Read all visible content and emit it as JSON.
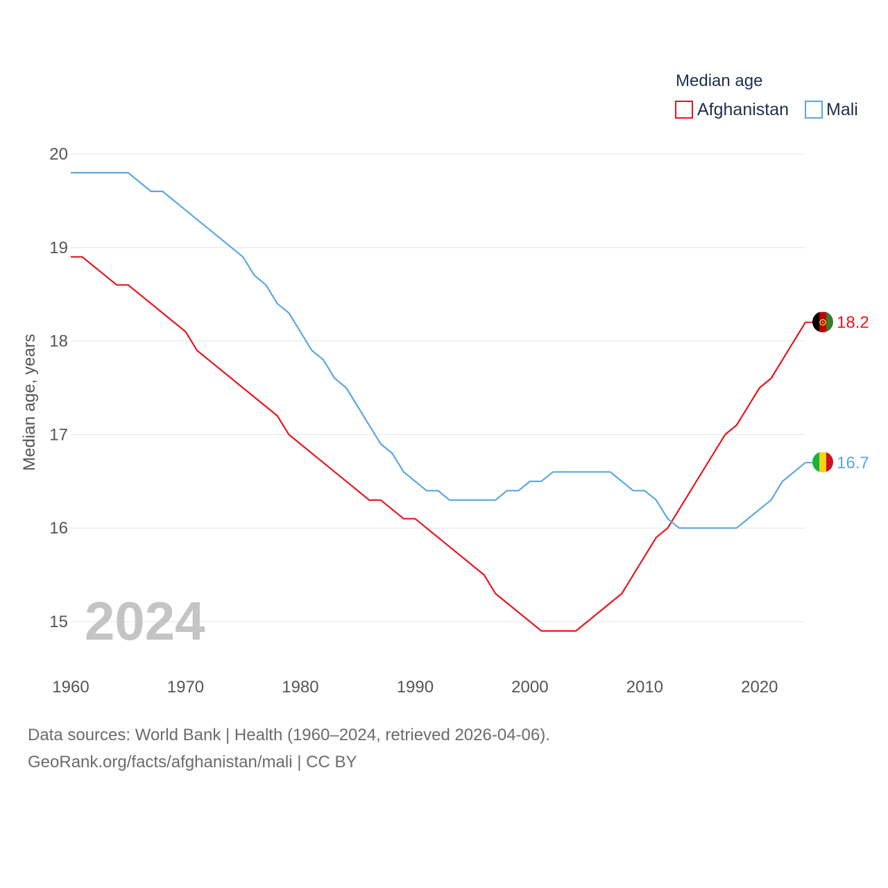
{
  "chart_data": {
    "type": "line",
    "legend_title": "Median age",
    "ylabel": "Median age, years",
    "xlabel": "",
    "xlim": [
      1960,
      2024
    ],
    "ylim": [
      14.5,
      20.2
    ],
    "y_ticks": [
      15,
      16,
      17,
      18,
      19,
      20
    ],
    "x_ticks": [
      1960,
      1970,
      1980,
      1990,
      2000,
      2010,
      2020
    ],
    "year_label": "2024",
    "legend_position": "top-right",
    "grid": true,
    "series": [
      {
        "name": "Afghanistan",
        "color": "#e8141c",
        "flag": "afghanistan-flag",
        "end_label": "18.2",
        "points": [
          [
            1960,
            18.9
          ],
          [
            1961,
            18.9
          ],
          [
            1964,
            18.6
          ],
          [
            1965,
            18.6
          ],
          [
            1970,
            18.1
          ],
          [
            1971,
            17.9
          ],
          [
            1978,
            17.2
          ],
          [
            1979,
            17.0
          ],
          [
            1986,
            16.3
          ],
          [
            1987,
            16.3
          ],
          [
            1989,
            16.1
          ],
          [
            1990,
            16.1
          ],
          [
            1996,
            15.5
          ],
          [
            1997,
            15.3
          ],
          [
            2001,
            14.9
          ],
          [
            2004,
            14.9
          ],
          [
            2008,
            15.3
          ],
          [
            2011,
            15.9
          ],
          [
            2012,
            16.0
          ],
          [
            2017,
            17.0
          ],
          [
            2018,
            17.1
          ],
          [
            2020,
            17.5
          ],
          [
            2021,
            17.6
          ],
          [
            2024,
            18.2
          ]
        ]
      },
      {
        "name": "Mali",
        "color": "#5aa5e6",
        "flag": "mali-flag",
        "end_label": "16.7",
        "points": [
          [
            1960,
            19.8
          ],
          [
            1965,
            19.8
          ],
          [
            1967,
            19.6
          ],
          [
            1968,
            19.6
          ],
          [
            1975,
            18.9
          ],
          [
            1976,
            18.7
          ],
          [
            1977,
            18.6
          ],
          [
            1978,
            18.4
          ],
          [
            1979,
            18.3
          ],
          [
            1981,
            17.9
          ],
          [
            1982,
            17.8
          ],
          [
            1983,
            17.6
          ],
          [
            1984,
            17.5
          ],
          [
            1987,
            16.9
          ],
          [
            1988,
            16.8
          ],
          [
            1989,
            16.6
          ],
          [
            1991,
            16.4
          ],
          [
            1992,
            16.4
          ],
          [
            1993,
            16.3
          ],
          [
            1997,
            16.3
          ],
          [
            1998,
            16.4
          ],
          [
            1999,
            16.4
          ],
          [
            2000,
            16.5
          ],
          [
            2001,
            16.5
          ],
          [
            2002,
            16.6
          ],
          [
            2007,
            16.6
          ],
          [
            2009,
            16.4
          ],
          [
            2010,
            16.4
          ],
          [
            2011,
            16.3
          ],
          [
            2012,
            16.1
          ],
          [
            2013,
            16.0
          ],
          [
            2018,
            16.0
          ],
          [
            2021,
            16.3
          ],
          [
            2022,
            16.5
          ],
          [
            2024,
            16.7
          ]
        ]
      }
    ]
  },
  "footer": {
    "line1": "Data sources: World Bank | Health (1960–2024, retrieved 2026-04-06).",
    "line2": "GeoRank.org/facts/afghanistan/mali | CC BY"
  }
}
